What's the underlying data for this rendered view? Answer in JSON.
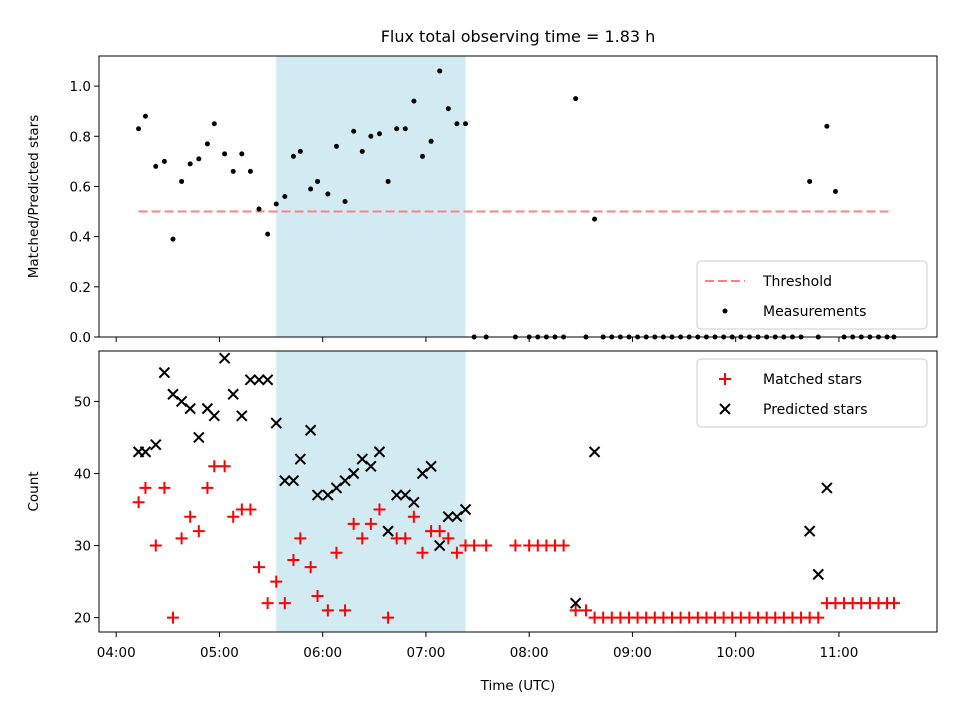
{
  "chart_data": {
    "title": "Flux total observing time = 1.83 h",
    "xlabel": "Time (UTC)",
    "x_ticks": [
      "04:00",
      "05:00",
      "06:00",
      "07:00",
      "08:00",
      "09:00",
      "10:00",
      "11:00"
    ],
    "x_range": [
      "03:50",
      "11:57"
    ],
    "shaded_interval": {
      "start": "05:33",
      "end": "07:23",
      "color": "#add8e6"
    },
    "panels": [
      {
        "type": "scatter",
        "ylabel": "Matched/Predicted stars",
        "ylim": [
          0,
          1.12
        ],
        "y_ticks": [
          "0.0",
          "0.2",
          "0.4",
          "0.6",
          "0.8",
          "1.0"
        ],
        "legend_position": "lower right",
        "series": [
          {
            "name": "Threshold",
            "kind": "line",
            "style": "dashed",
            "color": "#ff8080",
            "x": [
              "04:13",
              "11:30"
            ],
            "y": [
              0.5,
              0.5
            ]
          },
          {
            "name": "Measurements",
            "kind": "dots",
            "color": "#000000",
            "x": [
              "04:13",
              "04:17",
              "04:23",
              "04:28",
              "04:33",
              "04:38",
              "04:43",
              "04:48",
              "04:53",
              "04:57",
              "05:03",
              "05:08",
              "05:13",
              "05:18",
              "05:23",
              "05:28",
              "05:33",
              "05:38",
              "05:43",
              "05:47",
              "05:53",
              "05:57",
              "06:03",
              "06:08",
              "06:13",
              "06:18",
              "06:23",
              "06:28",
              "06:33",
              "06:38",
              "06:43",
              "06:48",
              "06:53",
              "06:58",
              "07:03",
              "07:08",
              "07:13",
              "07:18",
              "07:23",
              "07:28",
              "07:35",
              "07:52",
              "08:00",
              "08:05",
              "08:10",
              "08:15",
              "08:20",
              "08:27",
              "08:33",
              "08:38",
              "08:43",
              "08:48",
              "08:53",
              "08:58",
              "09:03",
              "09:08",
              "09:13",
              "09:18",
              "09:23",
              "09:28",
              "09:33",
              "09:38",
              "09:43",
              "09:48",
              "09:53",
              "09:58",
              "10:03",
              "10:08",
              "10:13",
              "10:18",
              "10:23",
              "10:28",
              "10:33",
              "10:38",
              "10:43",
              "10:48",
              "10:53",
              "10:58",
              "11:03",
              "11:08",
              "11:13",
              "11:18",
              "11:23",
              "11:28",
              "11:32"
            ],
            "y": [
              0.83,
              0.88,
              0.68,
              0.7,
              0.39,
              0.62,
              0.69,
              0.71,
              0.77,
              0.85,
              0.73,
              0.66,
              0.73,
              0.66,
              0.51,
              0.41,
              0.53,
              0.56,
              0.72,
              0.74,
              0.59,
              0.62,
              0.57,
              0.76,
              0.54,
              0.82,
              0.74,
              0.8,
              0.81,
              0.62,
              0.83,
              0.83,
              0.94,
              0.72,
              0.78,
              1.06,
              0.91,
              0.85,
              0.85,
              0,
              0,
              0,
              0,
              0,
              0,
              0,
              0,
              0.95,
              0,
              0.47,
              0,
              0,
              0,
              0,
              0,
              0,
              0,
              0,
              0,
              0,
              0,
              0,
              0,
              0,
              0,
              0,
              0,
              0,
              0,
              0,
              0,
              0,
              0,
              0,
              0.62,
              0,
              0.84,
              0.58,
              0,
              0,
              0,
              0,
              0,
              0,
              0
            ]
          }
        ]
      },
      {
        "type": "scatter",
        "ylabel": "Count",
        "ylim": [
          18,
          57
        ],
        "y_ticks": [
          "20",
          "30",
          "40",
          "50"
        ],
        "legend_position": "upper right",
        "series": [
          {
            "name": "Matched stars",
            "marker": "+",
            "color": "#ff0000",
            "x": [
              "04:13",
              "04:17",
              "04:23",
              "04:28",
              "04:33",
              "04:38",
              "04:43",
              "04:48",
              "04:53",
              "04:57",
              "05:03",
              "05:08",
              "05:13",
              "05:18",
              "05:23",
              "05:28",
              "05:33",
              "05:38",
              "05:43",
              "05:47",
              "05:53",
              "05:57",
              "06:03",
              "06:08",
              "06:13",
              "06:18",
              "06:23",
              "06:28",
              "06:33",
              "06:38",
              "06:43",
              "06:48",
              "06:53",
              "06:58",
              "07:03",
              "07:08",
              "07:13",
              "07:18",
              "07:23",
              "07:28",
              "07:35",
              "07:52",
              "08:00",
              "08:05",
              "08:10",
              "08:15",
              "08:20",
              "08:27",
              "08:33",
              "08:38",
              "08:43",
              "08:48",
              "08:53",
              "08:58",
              "09:03",
              "09:08",
              "09:13",
              "09:18",
              "09:23",
              "09:28",
              "09:33",
              "09:38",
              "09:43",
              "09:48",
              "09:53",
              "09:58",
              "10:03",
              "10:08",
              "10:13",
              "10:18",
              "10:23",
              "10:28",
              "10:33",
              "10:38",
              "10:43",
              "10:48",
              "10:53",
              "10:58",
              "11:03",
              "11:08",
              "11:13",
              "11:18",
              "11:23",
              "11:28",
              "11:32"
            ],
            "y": [
              36,
              38,
              30,
              38,
              20,
              31,
              34,
              32,
              38,
              41,
              41,
              34,
              35,
              35,
              27,
              22,
              25,
              22,
              28,
              31,
              27,
              23,
              21,
              29,
              21,
              33,
              31,
              33,
              35,
              20,
              31,
              31,
              34,
              29,
              32,
              32,
              31,
              29,
              30,
              30,
              30,
              30,
              30,
              30,
              30,
              30,
              30,
              21,
              21,
              20,
              20,
              20,
              20,
              20,
              20,
              20,
              20,
              20,
              20,
              20,
              20,
              20,
              20,
              20,
              20,
              20,
              20,
              20,
              20,
              20,
              20,
              20,
              20,
              20,
              20,
              20,
              22,
              22,
              22,
              22,
              22,
              22,
              22,
              22,
              22
            ]
          },
          {
            "name": "Predicted stars",
            "marker": "x",
            "color": "#000000",
            "x": [
              "04:13",
              "04:17",
              "04:23",
              "04:28",
              "04:33",
              "04:38",
              "04:43",
              "04:48",
              "04:53",
              "04:57",
              "05:03",
              "05:08",
              "05:13",
              "05:18",
              "05:23",
              "05:28",
              "05:33",
              "05:38",
              "05:43",
              "05:47",
              "05:53",
              "05:57",
              "06:03",
              "06:08",
              "06:13",
              "06:18",
              "06:23",
              "06:28",
              "06:33",
              "06:38",
              "06:43",
              "06:48",
              "06:53",
              "06:58",
              "07:03",
              "07:08",
              "07:13",
              "07:18",
              "07:23",
              "08:27",
              "08:38",
              "10:43",
              "10:48",
              "10:53"
            ],
            "y": [
              43,
              43,
              44,
              54,
              51,
              50,
              49,
              45,
              49,
              48,
              56,
              51,
              48,
              53,
              53,
              53,
              47,
              39,
              39,
              42,
              46,
              37,
              37,
              38,
              39,
              40,
              42,
              41,
              43,
              32,
              37,
              37,
              36,
              40,
              41,
              30,
              34,
              34,
              35,
              22,
              43,
              32,
              26,
              38
            ]
          }
        ]
      }
    ]
  }
}
